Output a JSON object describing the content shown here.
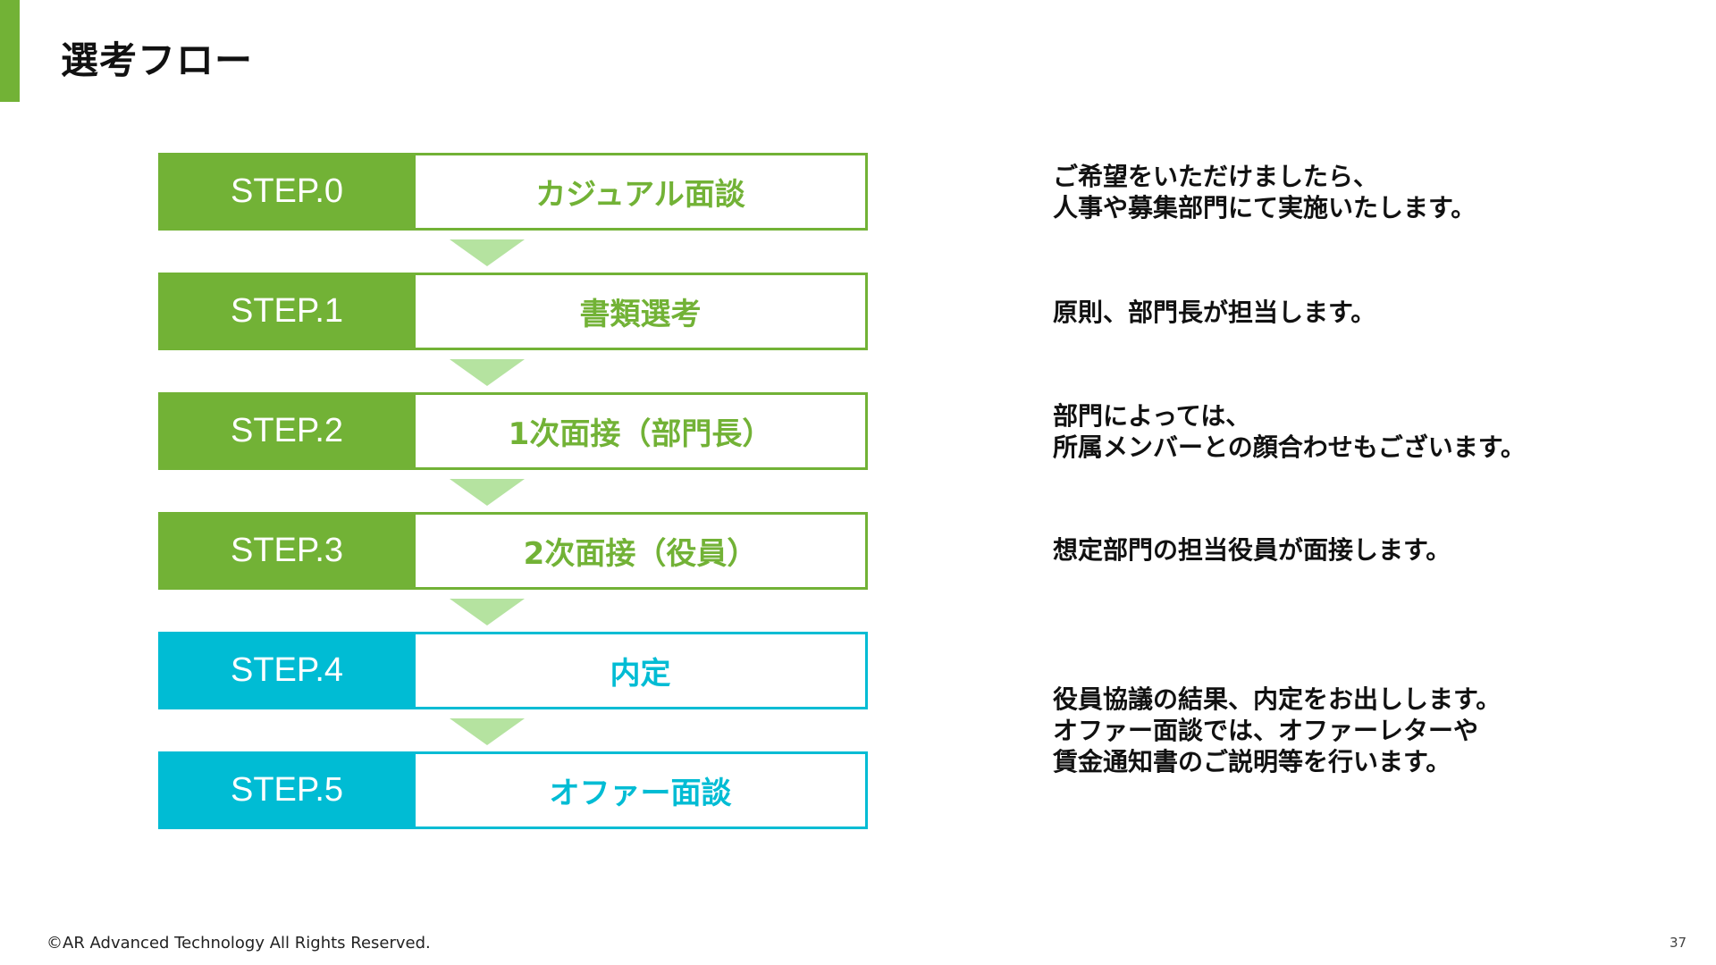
{
  "title": "選考フロー",
  "colors": {
    "green": "#72b236",
    "teal": "#00bcd4",
    "arrow": "#b5e3a0"
  },
  "steps": [
    {
      "label": "STEP.0",
      "name": "カジュアル面談",
      "color": "#72b236"
    },
    {
      "label": "STEP.1",
      "name": "書類選考",
      "color": "#72b236"
    },
    {
      "label": "STEP.2",
      "name": "1次面接（部門長）",
      "color": "#72b236"
    },
    {
      "label": "STEP.3",
      "name": "2次面接（役員）",
      "color": "#72b236"
    },
    {
      "label": "STEP.4",
      "name": "内定",
      "color": "#00bcd4"
    },
    {
      "label": "STEP.5",
      "name": "オファー面談",
      "color": "#00bcd4"
    }
  ],
  "descriptions": [
    "ご希望をいただけましたら、\n人事や募集部門にて実施いたします。",
    "原則、部門長が担当します。",
    "部門によっては、\n所属メンバーとの顔合わせもございます。",
    "想定部門の担当役員が面接します。",
    "役員協議の結果、内定をお出しします。\nオファー面談では、オファーレターや\n賃金通知書のご説明等を行います。"
  ],
  "footer": "©AR Advanced Technology All Rights Reserved.",
  "page_number": "37"
}
